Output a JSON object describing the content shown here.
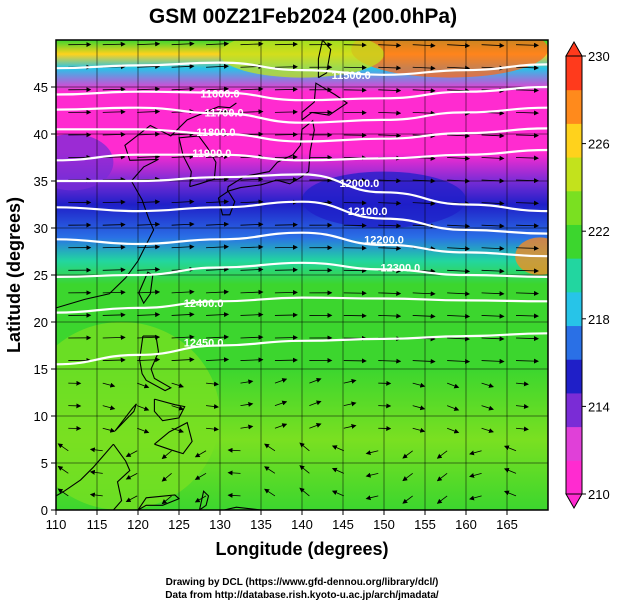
{
  "chart_data": {
    "type": "heatmap",
    "title": "GSM 00Z21Feb2024 (200.0hPa)",
    "xlabel": "Longitude (degrees)",
    "ylabel": "Latitude  (degrees)",
    "xlim": [
      110,
      170
    ],
    "ylim": [
      0,
      50
    ],
    "x_ticks": [
      110,
      115,
      120,
      125,
      130,
      135,
      140,
      145,
      150,
      155,
      160,
      165
    ],
    "y_ticks": [
      0,
      5,
      10,
      15,
      20,
      25,
      30,
      35,
      40,
      45
    ],
    "colorbar": {
      "min": 210,
      "max": 230,
      "ticks": [
        210,
        214,
        218,
        222,
        226,
        230
      ],
      "colors": [
        "#ff2bd0",
        "#e040d8",
        "#7a2cd6",
        "#1f1fc8",
        "#2a70e6",
        "#27c4e8",
        "#22d6a0",
        "#3cd62e",
        "#7ae021",
        "#c3e21c",
        "#ffd21c",
        "#ff8a1c",
        "#ff3a1c"
      ]
    },
    "contours": [
      {
        "label": "11500.0",
        "label_lon": 146,
        "label_lat": 46.3,
        "points": [
          [
            110,
            47
          ],
          [
            120,
            47.3
          ],
          [
            130,
            47.6
          ],
          [
            140,
            46.8
          ],
          [
            150,
            46.3
          ],
          [
            160,
            46.8
          ],
          [
            170,
            47.4
          ]
        ]
      },
      {
        "label": "11600.0",
        "label_lon": 130,
        "label_lat": 44.3,
        "points": [
          [
            110,
            44.2
          ],
          [
            120,
            44.5
          ],
          [
            130,
            44.4
          ],
          [
            140,
            43.6
          ],
          [
            150,
            43.8
          ],
          [
            160,
            44.5
          ],
          [
            170,
            45
          ]
        ]
      },
      {
        "label": "11700.0",
        "label_lon": 130.5,
        "label_lat": 42.3,
        "points": [
          [
            110,
            42.6
          ],
          [
            120,
            42.8
          ],
          [
            130,
            42.2
          ],
          [
            140,
            41.2
          ],
          [
            150,
            41.5
          ],
          [
            160,
            42.3
          ],
          [
            170,
            42.8
          ]
        ]
      },
      {
        "label": "11800.0",
        "label_lon": 129.5,
        "label_lat": 40.2,
        "points": [
          [
            110,
            40.5
          ],
          [
            120,
            40.5
          ],
          [
            130,
            40.0
          ],
          [
            140,
            39.2
          ],
          [
            150,
            39.5
          ],
          [
            160,
            40.1
          ],
          [
            170,
            40.6
          ]
        ]
      },
      {
        "label": "11900.0",
        "label_lon": 129,
        "label_lat": 38.0,
        "points": [
          [
            110,
            37.2
          ],
          [
            120,
            37.8
          ],
          [
            130,
            37.8
          ],
          [
            140,
            37.2
          ],
          [
            150,
            37.4
          ],
          [
            160,
            37.8
          ],
          [
            170,
            38.3
          ]
        ]
      },
      {
        "label": "12000.0",
        "label_lon": 147,
        "label_lat": 34.8,
        "points": [
          [
            110,
            35.0
          ],
          [
            120,
            35.0
          ],
          [
            130,
            35.4
          ],
          [
            140,
            35.7
          ],
          [
            150,
            33.8
          ],
          [
            160,
            32.5
          ],
          [
            170,
            31.8
          ]
        ]
      },
      {
        "label": "12100.0",
        "label_lon": 148,
        "label_lat": 31.8,
        "points": [
          [
            110,
            32.2
          ],
          [
            120,
            31.8
          ],
          [
            130,
            32.2
          ],
          [
            140,
            32.8
          ],
          [
            150,
            31.0
          ],
          [
            160,
            29.8
          ],
          [
            170,
            29.4
          ]
        ]
      },
      {
        "label": "12200.0",
        "label_lon": 150,
        "label_lat": 28.8,
        "points": [
          [
            110,
            28.8
          ],
          [
            120,
            28.3
          ],
          [
            130,
            28.8
          ],
          [
            140,
            29.5
          ],
          [
            150,
            28.2
          ],
          [
            160,
            27.4
          ],
          [
            170,
            27.0
          ]
        ]
      },
      {
        "label": "12300.0",
        "label_lon": 152,
        "label_lat": 25.8,
        "points": [
          [
            110,
            24.8
          ],
          [
            120,
            25.0
          ],
          [
            130,
            25.8
          ],
          [
            140,
            26.3
          ],
          [
            150,
            25.6
          ],
          [
            160,
            25.0
          ],
          [
            170,
            24.8
          ]
        ]
      },
      {
        "label": "12400.0",
        "label_lon": 128,
        "label_lat": 22.0,
        "points": [
          [
            110,
            21.0
          ],
          [
            120,
            21.5
          ],
          [
            130,
            22.2
          ],
          [
            140,
            22.6
          ],
          [
            150,
            22.5
          ],
          [
            160,
            22.3
          ],
          [
            170,
            22.2
          ]
        ]
      },
      {
        "label": "12450.0",
        "label_lon": 128,
        "label_lat": 17.8,
        "points": [
          [
            110,
            15.5
          ],
          [
            120,
            16.5
          ],
          [
            130,
            17.5
          ],
          [
            140,
            18.0
          ],
          [
            150,
            18.2
          ],
          [
            160,
            18.5
          ],
          [
            170,
            18.8
          ]
        ]
      }
    ]
  },
  "credits": {
    "line1": "Drawing by DCL (https://www.gfd-dennou.org/library/dcl/)",
    "line2": "Data from http://database.rish.kyoto-u.ac.jp/arch/jmadata/"
  },
  "map": {
    "land_outline_color": "#000000",
    "vector_color": "#000000",
    "contour_color": "#ffffff"
  }
}
